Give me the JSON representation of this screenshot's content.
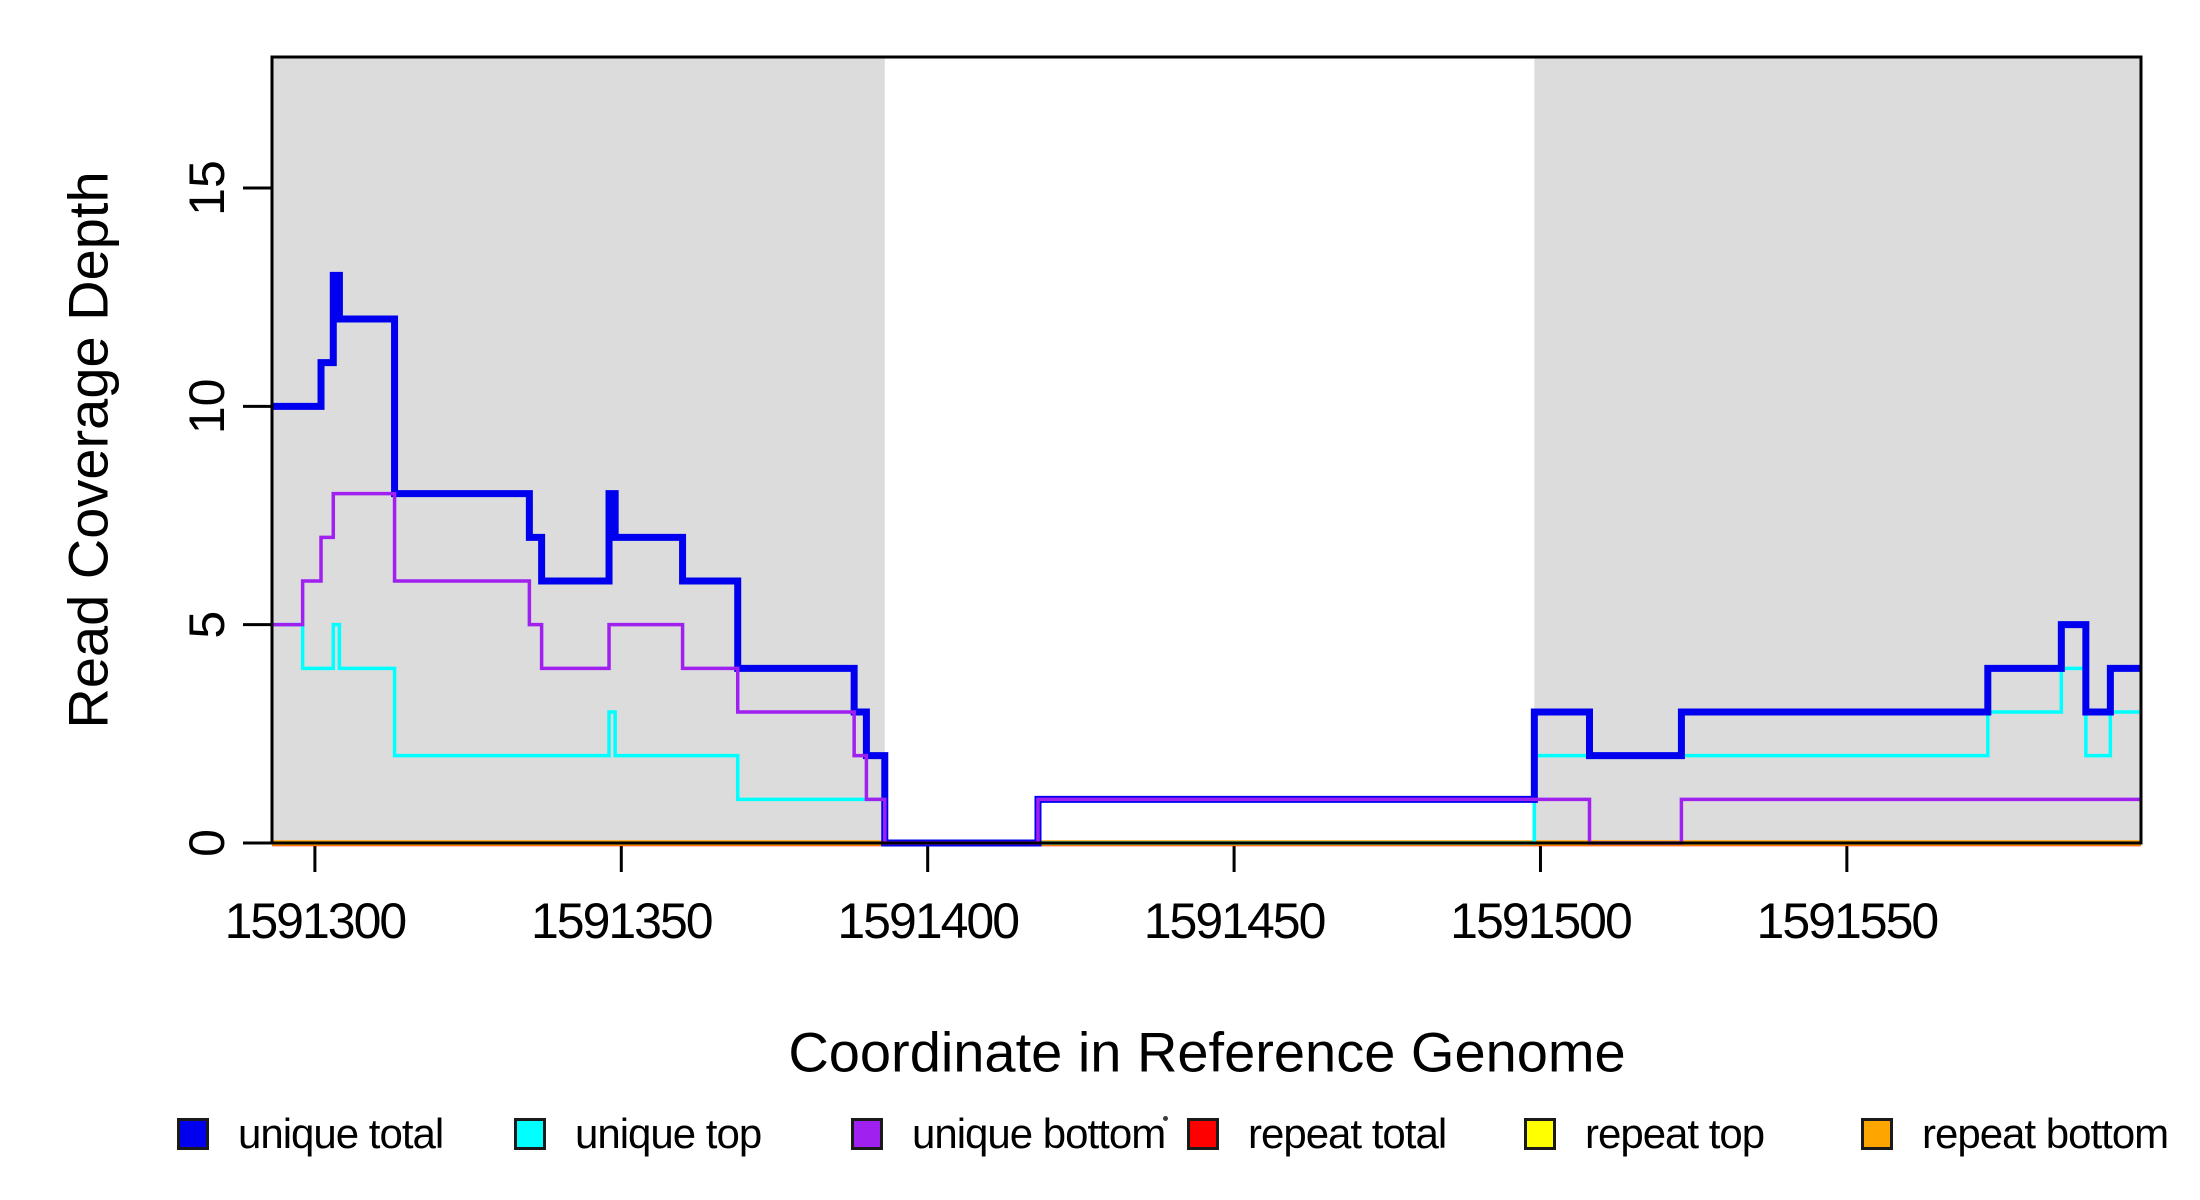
{
  "chart_data": {
    "type": "line",
    "subtype": "step-coverage-plot",
    "title": "",
    "xlabel": "Coordinate in Reference Genome",
    "ylabel": "Read Coverage Depth",
    "xlim": [
      1591293,
      1591598
    ],
    "ylim": [
      0,
      18
    ],
    "grid": false,
    "x_ticks": [
      1591300,
      1591350,
      1591400,
      1591450,
      1591500,
      1591550
    ],
    "y_ticks": [
      0,
      5,
      10,
      15
    ],
    "shaded_regions": [
      {
        "name": "repeat-region-left",
        "from": 1591293,
        "to": 1591393,
        "color": "#DCDCDC"
      },
      {
        "name": "repeat-region-right",
        "from": 1591499,
        "to": 1591598,
        "color": "#DCDCDC"
      }
    ],
    "legend_position": "bottom",
    "legend": [
      {
        "label": "unique total",
        "color": "#0000EE"
      },
      {
        "label": "unique top",
        "color": "#00FFFF"
      },
      {
        "label": "unique bottom",
        "color": "#A020F0"
      },
      {
        "label": "repeat total",
        "color": "#FF0000"
      },
      {
        "label": "repeat top",
        "color": "#FFFF00"
      },
      {
        "label": "repeat bottom",
        "color": "#FFA500"
      }
    ],
    "series": [
      {
        "name": "unique total",
        "color": "#0000EE",
        "stroke_width": 7,
        "steps": [
          [
            1591293,
            10
          ],
          [
            1591301,
            11
          ],
          [
            1591303,
            13
          ],
          [
            1591304,
            12
          ],
          [
            1591313,
            8
          ],
          [
            1591335,
            7
          ],
          [
            1591337,
            6
          ],
          [
            1591348,
            8
          ],
          [
            1591349,
            7
          ],
          [
            1591360,
            6
          ],
          [
            1591369,
            4
          ],
          [
            1591388,
            3
          ],
          [
            1591390,
            2
          ],
          [
            1591393,
            0
          ],
          [
            1591418,
            1
          ],
          [
            1591499,
            3
          ],
          [
            1591508,
            2
          ],
          [
            1591523,
            3
          ],
          [
            1591573,
            4
          ],
          [
            1591585,
            5
          ],
          [
            1591589,
            3
          ],
          [
            1591593,
            4
          ]
        ]
      },
      {
        "name": "unique top",
        "color": "#00FFFF",
        "stroke_width": 3.5,
        "steps": [
          [
            1591293,
            5
          ],
          [
            1591298,
            4
          ],
          [
            1591303,
            5
          ],
          [
            1591304,
            4
          ],
          [
            1591313,
            2
          ],
          [
            1591348,
            3
          ],
          [
            1591349,
            2
          ],
          [
            1591369,
            1
          ],
          [
            1591393,
            0
          ],
          [
            1591499,
            2
          ],
          [
            1591573,
            3
          ],
          [
            1591585,
            4
          ],
          [
            1591589,
            2
          ],
          [
            1591593,
            3
          ]
        ]
      },
      {
        "name": "unique bottom",
        "color": "#A020F0",
        "stroke_width": 3.5,
        "steps": [
          [
            1591293,
            5
          ],
          [
            1591298,
            6
          ],
          [
            1591301,
            7
          ],
          [
            1591303,
            8
          ],
          [
            1591313,
            6
          ],
          [
            1591335,
            5
          ],
          [
            1591337,
            4
          ],
          [
            1591348,
            5
          ],
          [
            1591360,
            4
          ],
          [
            1591369,
            3
          ],
          [
            1591388,
            2
          ],
          [
            1591390,
            1
          ],
          [
            1591393,
            0
          ],
          [
            1591418,
            1
          ],
          [
            1591508,
            0
          ],
          [
            1591523,
            1
          ]
        ]
      },
      {
        "name": "repeat total",
        "color": "#FF0000",
        "stroke_width": 3.5,
        "steps": [
          [
            1591293,
            0
          ]
        ]
      },
      {
        "name": "repeat top",
        "color": "#FFFF00",
        "stroke_width": 3.5,
        "steps": [
          [
            1591293,
            0
          ]
        ]
      },
      {
        "name": "repeat bottom",
        "color": "#FFA500",
        "stroke_width": 5.5,
        "steps": [
          [
            1591293,
            0
          ]
        ]
      }
    ],
    "draw_order": [
      "repeat total",
      "repeat top",
      "repeat bottom",
      "unique top",
      "unique total",
      "unique bottom"
    ],
    "y_offsets": {
      "repeat total": 1.5
    }
  }
}
